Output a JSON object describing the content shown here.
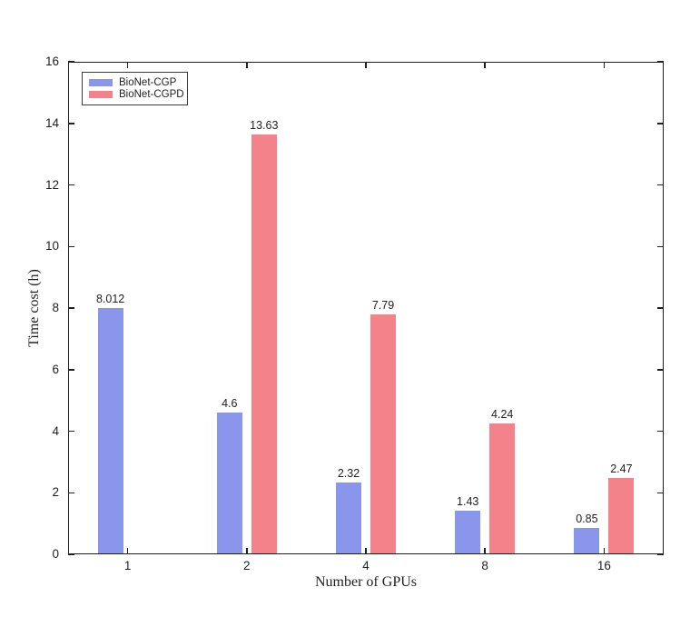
{
  "figure": {
    "background": "#ffffff",
    "axis_color": "#1f1f1f"
  },
  "chart_data": {
    "type": "bar",
    "title": "",
    "xlabel": "Number of GPUs",
    "ylabel": "Time cost (h)",
    "categories": [
      "1",
      "2",
      "4",
      "8",
      "16"
    ],
    "series": [
      {
        "name": "BioNet-CGP",
        "color": "#8996EB",
        "values": [
          8.012,
          4.6,
          2.32,
          1.43,
          0.85
        ],
        "bar_labels": [
          "8.012",
          "4.6",
          "2.32",
          "1.43",
          "0.85"
        ]
      },
      {
        "name": "BioNet-CGPD",
        "color": "#F4828B",
        "values": [
          null,
          13.63,
          7.79,
          4.24,
          2.47
        ],
        "bar_labels": [
          "",
          "13.63",
          "7.79",
          "4.24",
          "2.47"
        ]
      }
    ],
    "ylim": [
      0,
      16
    ],
    "yticks": [
      0,
      2,
      4,
      6,
      8,
      10,
      12,
      14,
      16
    ],
    "grid": false,
    "legend_position": "top-left",
    "tick_direction": "in",
    "box": true
  }
}
